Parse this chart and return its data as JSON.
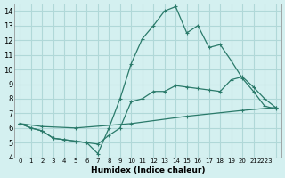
{
  "xlabel": "Humidex (Indice chaleur)",
  "ylabel": "",
  "background_color": "#d4f0f0",
  "grid_color": "#b0d8d8",
  "line_color": "#2a7a6a",
  "xlim": [
    -0.5,
    23.5
  ],
  "ylim": [
    4,
    14.5
  ],
  "yticks": [
    4,
    5,
    6,
    7,
    8,
    9,
    10,
    11,
    12,
    13,
    14
  ],
  "xtick_labels": [
    "0",
    "1",
    "2",
    "3",
    "4",
    "5",
    "6",
    "7",
    "8",
    "9",
    "10",
    "11",
    "12",
    "13",
    "14",
    "15",
    "16",
    "17",
    "18",
    "19",
    "20",
    "21",
    "2223",
    ""
  ],
  "line1_x": [
    0,
    1,
    2,
    3,
    4,
    5,
    6,
    7,
    8,
    9,
    10,
    11,
    12,
    13,
    14,
    15,
    16,
    17,
    18,
    19,
    20,
    21,
    22,
    23
  ],
  "line1_y": [
    6.3,
    6.0,
    5.8,
    5.3,
    5.2,
    5.1,
    5.0,
    4.25,
    6.0,
    8.0,
    10.4,
    12.1,
    13.0,
    14.0,
    14.3,
    12.5,
    13.0,
    11.5,
    11.7,
    10.6,
    9.4,
    8.5,
    7.5,
    7.3
  ],
  "line2_x": [
    0,
    1,
    2,
    3,
    4,
    5,
    6,
    7,
    8,
    9,
    10,
    11,
    12,
    13,
    14,
    15,
    16,
    17,
    18,
    19,
    20,
    21,
    22,
    23
  ],
  "line2_y": [
    6.3,
    6.0,
    5.8,
    5.3,
    5.2,
    5.1,
    5.0,
    4.9,
    5.5,
    6.0,
    7.8,
    8.0,
    8.5,
    8.5,
    8.9,
    8.8,
    8.7,
    8.6,
    8.5,
    9.3,
    9.5,
    8.8,
    8.0,
    7.4
  ],
  "line3_x": [
    0,
    2,
    5,
    10,
    15,
    20,
    23
  ],
  "line3_y": [
    6.3,
    6.1,
    6.0,
    6.3,
    6.8,
    7.2,
    7.4
  ]
}
